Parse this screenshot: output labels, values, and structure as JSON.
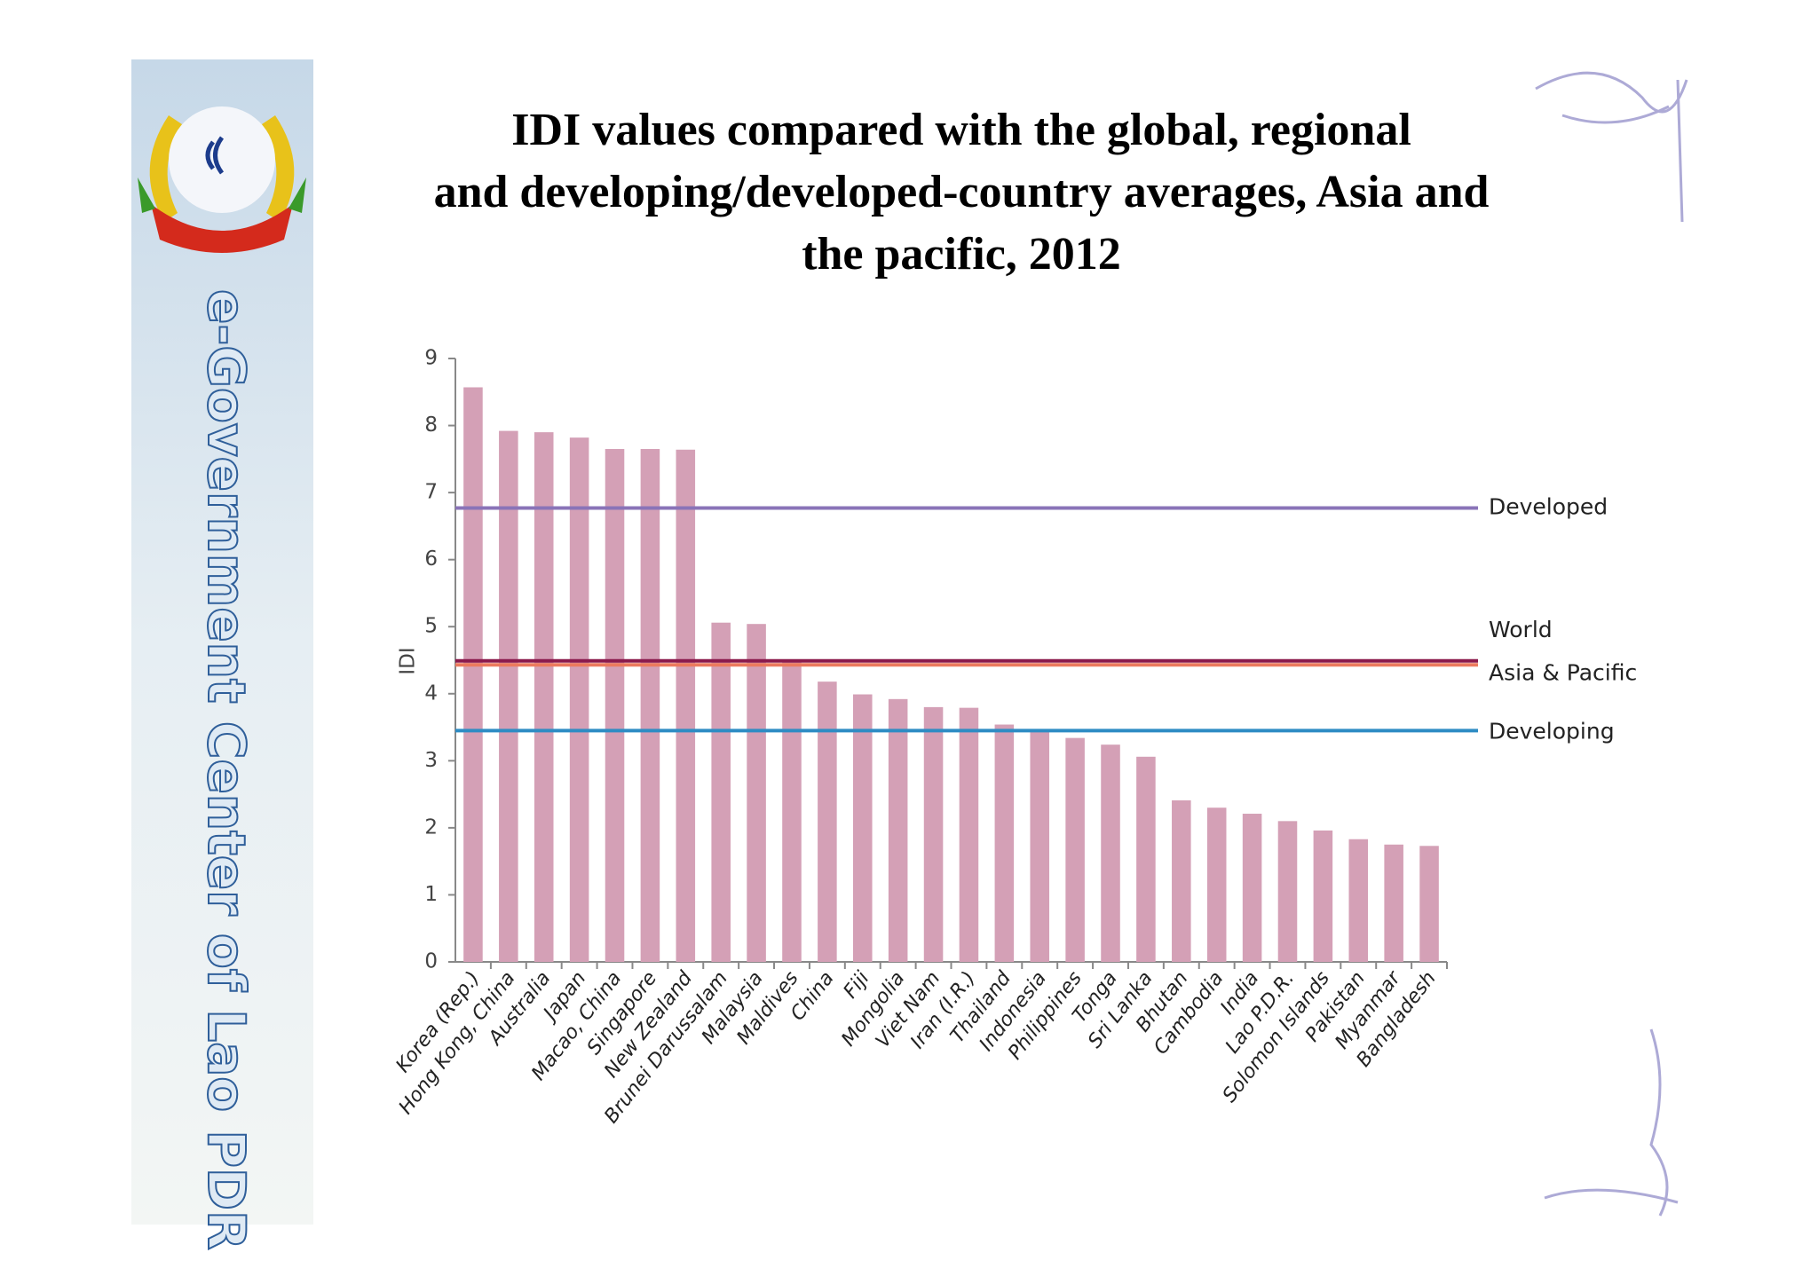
{
  "sidebar_text": "e-Government Center of Lao PDR",
  "chart_data": {
    "type": "bar",
    "title": "IDI values compared with the global, regional and developing/developed-country averages, Asia and the pacific, 2012",
    "y_label": "IDI",
    "categories": [
      "Korea (Rep.)",
      "Hong Kong, China",
      "Australia",
      "Japan",
      "Macao, China",
      "Singapore",
      "New Zealand",
      "Brunei Darussalam",
      "Malaysia",
      "Maldives",
      "China",
      "Fiji",
      "Mongolia",
      "Viet Nam",
      "Iran (I.R.)",
      "Thailand",
      "Indonesia",
      "Philippines",
      "Tonga",
      "Sri Lanka",
      "Bhutan",
      "Cambodia",
      "India",
      "Lao P.D.R.",
      "Solomon Islands",
      "Pakistan",
      "Myanmar",
      "Bangladesh"
    ],
    "values": [
      8.57,
      7.92,
      7.9,
      7.82,
      7.65,
      7.65,
      7.64,
      5.06,
      5.04,
      4.5,
      4.18,
      3.99,
      3.92,
      3.8,
      3.79,
      3.54,
      3.43,
      3.34,
      3.24,
      3.06,
      2.41,
      2.3,
      2.21,
      2.1,
      1.96,
      1.83,
      1.75,
      1.73
    ],
    "color": "#d4a0b6",
    "reference_lines": [
      {
        "name": "Developed",
        "value": 6.77,
        "color": "#8a74b8"
      },
      {
        "name": "World",
        "value": 4.49,
        "color": "#8b1a4c"
      },
      {
        "name": "Asia & Pacific",
        "value": 4.43,
        "color": "#ec7a5e"
      },
      {
        "name": "Developing",
        "value": 3.45,
        "color": "#2e8cc4"
      }
    ],
    "ylim": [
      0,
      9
    ],
    "yticks": [
      0,
      1,
      2,
      3,
      4,
      5,
      6,
      7,
      8,
      9
    ]
  }
}
